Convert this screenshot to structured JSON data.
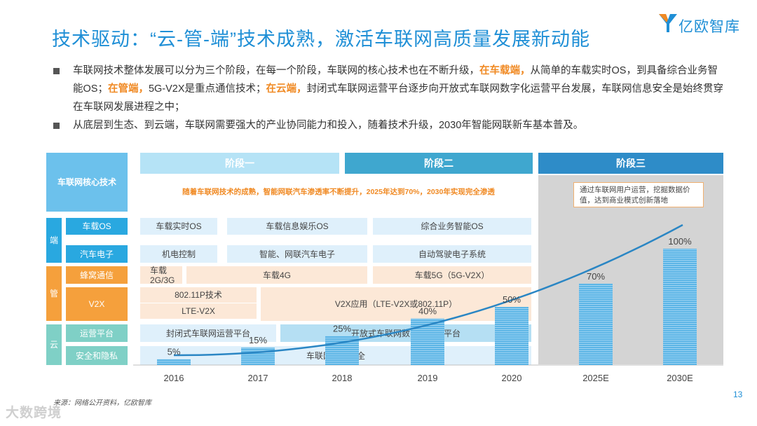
{
  "header": {
    "title": "技术驱动：“云-管-端”技术成熟，激活车联网高质量发展新动能",
    "logo_text": "亿欧智库"
  },
  "bullets": [
    {
      "segments": [
        {
          "text": "车联网技术整体发展可以分为三个阶段，在每一个阶段，车联网的核心技术也在不断升级，",
          "hl": false
        },
        {
          "text": "在车载端，",
          "hl": true
        },
        {
          "text": "从简单的车载实时OS，到具备综合业务智能OS；",
          "hl": false
        },
        {
          "text": "在管端，",
          "hl": true
        },
        {
          "text": "5G-V2X是重点通信技术；",
          "hl": false
        },
        {
          "text": "在云端，",
          "hl": true
        },
        {
          "text": "封闭式车联网运营平台逐步向开放式车联网数字化运营平台发展，车联网信息安全是始终贯穿在车联网发展进程之中；",
          "hl": false
        }
      ]
    },
    {
      "segments": [
        {
          "text": "从底层到生态、到云端，车联网需要强大的产业协同能力和投入，随着技术升级，2030年智能网联新车基本普及。",
          "hl": false
        }
      ]
    }
  ],
  "stages": {
    "stage1": "阶段一",
    "stage2": "阶段二",
    "stage3": "阶段三"
  },
  "colors": {
    "title_blue": "#1f8fd6",
    "stage1": "#b5e3f6",
    "stage2": "#3fa7cf",
    "stage3": "#2e8cc8",
    "highlight_orange": "#f08a24",
    "bar": "#5cb5e6",
    "curve": "#2a86c4"
  },
  "table": {
    "core_label": "车联网核心技术",
    "penetration_text": "随着车联网技术的成熟，智能网联汽车渗透率不断提升，2025年达到70%，2030年实现完全渗透",
    "stage3_note": "通过车联网用户运营，挖掘数据价值，达到商业模式创新落地",
    "groups": {
      "duan": "端",
      "guan": "管",
      "yun": "云"
    },
    "categories": {
      "os": "车载OS",
      "electronics": "汽车电子",
      "cellular": "蜂窝通信",
      "v2x": "V2X",
      "platform": "运营平台",
      "security": "安全和隐私"
    },
    "cells": {
      "os1": "车载实时OS",
      "os2": "车载信息娱乐OS",
      "os3": "综合业务智能OS",
      "el1": "机电控制",
      "el2": "智能、网联汽车电子",
      "el3": "自动驾驶电子系统",
      "cell1": "车载\n2G/3G",
      "cell2": "车载4G",
      "cell3": "车载5G（5G-V2X）",
      "v2x1": "802.11P技术",
      "v2x1b": "LTE-V2X",
      "v2x2": "V2X应用（LTE-V2X或802.11P）",
      "pl1": "封闭式车联网运营平台",
      "pl2": "开放式车联网数字化运营平台",
      "sec": "车联网信息安全"
    }
  },
  "chart_data": {
    "type": "bar",
    "categories": [
      "2016",
      "2017",
      "2018",
      "2019",
      "2020",
      "2025E",
      "2030E"
    ],
    "values": [
      5,
      15,
      25,
      40,
      50,
      70,
      100
    ],
    "value_labels": [
      "5%",
      "15%",
      "25%",
      "40%",
      "50%",
      "70%",
      "100%"
    ],
    "title": "",
    "xlabel": "",
    "ylabel": "",
    "ylim": [
      0,
      100
    ],
    "grid": false,
    "trend_line": true
  },
  "footer": {
    "source": "来源：网络公开资料，亿欧智库",
    "page_number": "13",
    "watermark": "大数跨境"
  }
}
